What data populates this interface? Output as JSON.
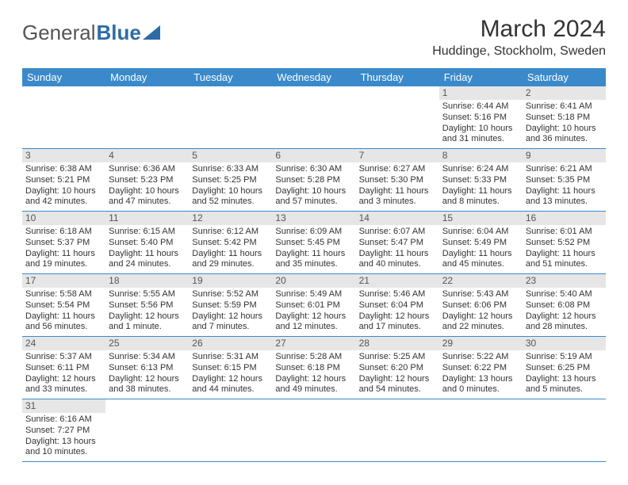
{
  "logo": {
    "text_a": "General",
    "text_b": "Blue"
  },
  "title": "March 2024",
  "location": "Huddinge, Stockholm, Sweden",
  "colors": {
    "header_bg": "#3a8acb",
    "header_text": "#ffffff",
    "daynum_bg": "#e6e6e6",
    "border": "#3a8acb",
    "text": "#333333",
    "logo_blue": "#2e6ca4"
  },
  "weekdays": [
    "Sunday",
    "Monday",
    "Tuesday",
    "Wednesday",
    "Thursday",
    "Friday",
    "Saturday"
  ],
  "weeks": [
    [
      {
        "n": "",
        "l1": "",
        "l2": "",
        "l3": "",
        "l4": ""
      },
      {
        "n": "",
        "l1": "",
        "l2": "",
        "l3": "",
        "l4": ""
      },
      {
        "n": "",
        "l1": "",
        "l2": "",
        "l3": "",
        "l4": ""
      },
      {
        "n": "",
        "l1": "",
        "l2": "",
        "l3": "",
        "l4": ""
      },
      {
        "n": "",
        "l1": "",
        "l2": "",
        "l3": "",
        "l4": ""
      },
      {
        "n": "1",
        "l1": "Sunrise: 6:44 AM",
        "l2": "Sunset: 5:16 PM",
        "l3": "Daylight: 10 hours",
        "l4": "and 31 minutes."
      },
      {
        "n": "2",
        "l1": "Sunrise: 6:41 AM",
        "l2": "Sunset: 5:18 PM",
        "l3": "Daylight: 10 hours",
        "l4": "and 36 minutes."
      }
    ],
    [
      {
        "n": "3",
        "l1": "Sunrise: 6:38 AM",
        "l2": "Sunset: 5:21 PM",
        "l3": "Daylight: 10 hours",
        "l4": "and 42 minutes."
      },
      {
        "n": "4",
        "l1": "Sunrise: 6:36 AM",
        "l2": "Sunset: 5:23 PM",
        "l3": "Daylight: 10 hours",
        "l4": "and 47 minutes."
      },
      {
        "n": "5",
        "l1": "Sunrise: 6:33 AM",
        "l2": "Sunset: 5:25 PM",
        "l3": "Daylight: 10 hours",
        "l4": "and 52 minutes."
      },
      {
        "n": "6",
        "l1": "Sunrise: 6:30 AM",
        "l2": "Sunset: 5:28 PM",
        "l3": "Daylight: 10 hours",
        "l4": "and 57 minutes."
      },
      {
        "n": "7",
        "l1": "Sunrise: 6:27 AM",
        "l2": "Sunset: 5:30 PM",
        "l3": "Daylight: 11 hours",
        "l4": "and 3 minutes."
      },
      {
        "n": "8",
        "l1": "Sunrise: 6:24 AM",
        "l2": "Sunset: 5:33 PM",
        "l3": "Daylight: 11 hours",
        "l4": "and 8 minutes."
      },
      {
        "n": "9",
        "l1": "Sunrise: 6:21 AM",
        "l2": "Sunset: 5:35 PM",
        "l3": "Daylight: 11 hours",
        "l4": "and 13 minutes."
      }
    ],
    [
      {
        "n": "10",
        "l1": "Sunrise: 6:18 AM",
        "l2": "Sunset: 5:37 PM",
        "l3": "Daylight: 11 hours",
        "l4": "and 19 minutes."
      },
      {
        "n": "11",
        "l1": "Sunrise: 6:15 AM",
        "l2": "Sunset: 5:40 PM",
        "l3": "Daylight: 11 hours",
        "l4": "and 24 minutes."
      },
      {
        "n": "12",
        "l1": "Sunrise: 6:12 AM",
        "l2": "Sunset: 5:42 PM",
        "l3": "Daylight: 11 hours",
        "l4": "and 29 minutes."
      },
      {
        "n": "13",
        "l1": "Sunrise: 6:09 AM",
        "l2": "Sunset: 5:45 PM",
        "l3": "Daylight: 11 hours",
        "l4": "and 35 minutes."
      },
      {
        "n": "14",
        "l1": "Sunrise: 6:07 AM",
        "l2": "Sunset: 5:47 PM",
        "l3": "Daylight: 11 hours",
        "l4": "and 40 minutes."
      },
      {
        "n": "15",
        "l1": "Sunrise: 6:04 AM",
        "l2": "Sunset: 5:49 PM",
        "l3": "Daylight: 11 hours",
        "l4": "and 45 minutes."
      },
      {
        "n": "16",
        "l1": "Sunrise: 6:01 AM",
        "l2": "Sunset: 5:52 PM",
        "l3": "Daylight: 11 hours",
        "l4": "and 51 minutes."
      }
    ],
    [
      {
        "n": "17",
        "l1": "Sunrise: 5:58 AM",
        "l2": "Sunset: 5:54 PM",
        "l3": "Daylight: 11 hours",
        "l4": "and 56 minutes."
      },
      {
        "n": "18",
        "l1": "Sunrise: 5:55 AM",
        "l2": "Sunset: 5:56 PM",
        "l3": "Daylight: 12 hours",
        "l4": "and 1 minute."
      },
      {
        "n": "19",
        "l1": "Sunrise: 5:52 AM",
        "l2": "Sunset: 5:59 PM",
        "l3": "Daylight: 12 hours",
        "l4": "and 7 minutes."
      },
      {
        "n": "20",
        "l1": "Sunrise: 5:49 AM",
        "l2": "Sunset: 6:01 PM",
        "l3": "Daylight: 12 hours",
        "l4": "and 12 minutes."
      },
      {
        "n": "21",
        "l1": "Sunrise: 5:46 AM",
        "l2": "Sunset: 6:04 PM",
        "l3": "Daylight: 12 hours",
        "l4": "and 17 minutes."
      },
      {
        "n": "22",
        "l1": "Sunrise: 5:43 AM",
        "l2": "Sunset: 6:06 PM",
        "l3": "Daylight: 12 hours",
        "l4": "and 22 minutes."
      },
      {
        "n": "23",
        "l1": "Sunrise: 5:40 AM",
        "l2": "Sunset: 6:08 PM",
        "l3": "Daylight: 12 hours",
        "l4": "and 28 minutes."
      }
    ],
    [
      {
        "n": "24",
        "l1": "Sunrise: 5:37 AM",
        "l2": "Sunset: 6:11 PM",
        "l3": "Daylight: 12 hours",
        "l4": "and 33 minutes."
      },
      {
        "n": "25",
        "l1": "Sunrise: 5:34 AM",
        "l2": "Sunset: 6:13 PM",
        "l3": "Daylight: 12 hours",
        "l4": "and 38 minutes."
      },
      {
        "n": "26",
        "l1": "Sunrise: 5:31 AM",
        "l2": "Sunset: 6:15 PM",
        "l3": "Daylight: 12 hours",
        "l4": "and 44 minutes."
      },
      {
        "n": "27",
        "l1": "Sunrise: 5:28 AM",
        "l2": "Sunset: 6:18 PM",
        "l3": "Daylight: 12 hours",
        "l4": "and 49 minutes."
      },
      {
        "n": "28",
        "l1": "Sunrise: 5:25 AM",
        "l2": "Sunset: 6:20 PM",
        "l3": "Daylight: 12 hours",
        "l4": "and 54 minutes."
      },
      {
        "n": "29",
        "l1": "Sunrise: 5:22 AM",
        "l2": "Sunset: 6:22 PM",
        "l3": "Daylight: 13 hours",
        "l4": "and 0 minutes."
      },
      {
        "n": "30",
        "l1": "Sunrise: 5:19 AM",
        "l2": "Sunset: 6:25 PM",
        "l3": "Daylight: 13 hours",
        "l4": "and 5 minutes."
      }
    ],
    [
      {
        "n": "31",
        "l1": "Sunrise: 6:16 AM",
        "l2": "Sunset: 7:27 PM",
        "l3": "Daylight: 13 hours",
        "l4": "and 10 minutes."
      },
      {
        "n": "",
        "l1": "",
        "l2": "",
        "l3": "",
        "l4": ""
      },
      {
        "n": "",
        "l1": "",
        "l2": "",
        "l3": "",
        "l4": ""
      },
      {
        "n": "",
        "l1": "",
        "l2": "",
        "l3": "",
        "l4": ""
      },
      {
        "n": "",
        "l1": "",
        "l2": "",
        "l3": "",
        "l4": ""
      },
      {
        "n": "",
        "l1": "",
        "l2": "",
        "l3": "",
        "l4": ""
      },
      {
        "n": "",
        "l1": "",
        "l2": "",
        "l3": "",
        "l4": ""
      }
    ]
  ]
}
